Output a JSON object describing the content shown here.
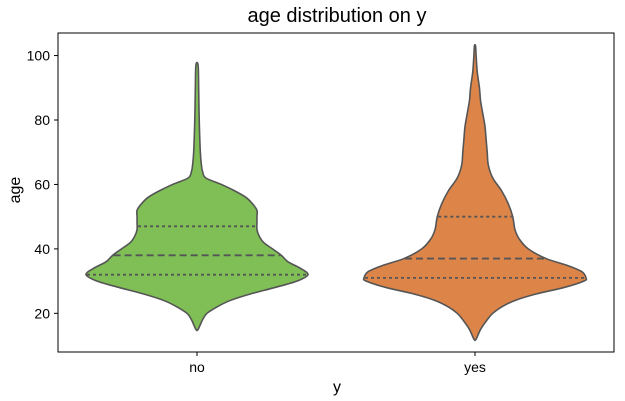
{
  "chart_data": {
    "type": "violin",
    "title": "age distribution on y",
    "xlabel": "y",
    "ylabel": "age",
    "categories": [
      "no",
      "yes"
    ],
    "ylim": [
      8,
      107
    ],
    "yticks": [
      20,
      40,
      60,
      80,
      100
    ],
    "grid": false,
    "legend": "none",
    "inner": "quartile",
    "series": [
      {
        "category": "no",
        "color": "#7fbf56",
        "edge_color": "#555555",
        "min": 15,
        "max": 97,
        "quartiles": {
          "q1": 32,
          "median": 38,
          "q3": 47
        },
        "profile": [
          [
            15,
            0.01
          ],
          [
            18,
            0.05
          ],
          [
            20,
            0.09
          ],
          [
            22,
            0.18
          ],
          [
            24,
            0.3
          ],
          [
            26,
            0.48
          ],
          [
            28,
            0.7
          ],
          [
            30,
            0.9
          ],
          [
            32,
            1.0
          ],
          [
            34,
            0.93
          ],
          [
            36,
            0.82
          ],
          [
            38,
            0.76
          ],
          [
            40,
            0.68
          ],
          [
            42,
            0.6
          ],
          [
            44,
            0.56
          ],
          [
            46,
            0.54
          ],
          [
            48,
            0.54
          ],
          [
            50,
            0.54
          ],
          [
            52,
            0.54
          ],
          [
            54,
            0.5
          ],
          [
            56,
            0.44
          ],
          [
            58,
            0.34
          ],
          [
            60,
            0.22
          ],
          [
            62,
            0.08
          ],
          [
            64,
            0.05
          ],
          [
            66,
            0.04
          ],
          [
            70,
            0.03
          ],
          [
            80,
            0.02
          ],
          [
            90,
            0.015
          ],
          [
            97,
            0.01
          ]
        ]
      },
      {
        "category": "yes",
        "color": "#dd8549",
        "edge_color": "#555555",
        "min": 12,
        "max": 103,
        "quartiles": {
          "q1": 31,
          "median": 37,
          "q3": 50
        },
        "profile": [
          [
            12,
            0.01
          ],
          [
            15,
            0.05
          ],
          [
            18,
            0.11
          ],
          [
            20,
            0.16
          ],
          [
            22,
            0.24
          ],
          [
            24,
            0.36
          ],
          [
            26,
            0.55
          ],
          [
            28,
            0.8
          ],
          [
            30,
            0.98
          ],
          [
            31,
            1.0
          ],
          [
            33,
            0.96
          ],
          [
            35,
            0.82
          ],
          [
            37,
            0.64
          ],
          [
            40,
            0.48
          ],
          [
            43,
            0.4
          ],
          [
            46,
            0.36
          ],
          [
            50,
            0.34
          ],
          [
            54,
            0.3
          ],
          [
            58,
            0.24
          ],
          [
            62,
            0.16
          ],
          [
            66,
            0.12
          ],
          [
            70,
            0.11
          ],
          [
            74,
            0.1
          ],
          [
            78,
            0.09
          ],
          [
            82,
            0.07
          ],
          [
            86,
            0.05
          ],
          [
            90,
            0.04
          ],
          [
            95,
            0.02
          ],
          [
            100,
            0.01
          ],
          [
            103,
            0.005
          ]
        ]
      }
    ]
  }
}
